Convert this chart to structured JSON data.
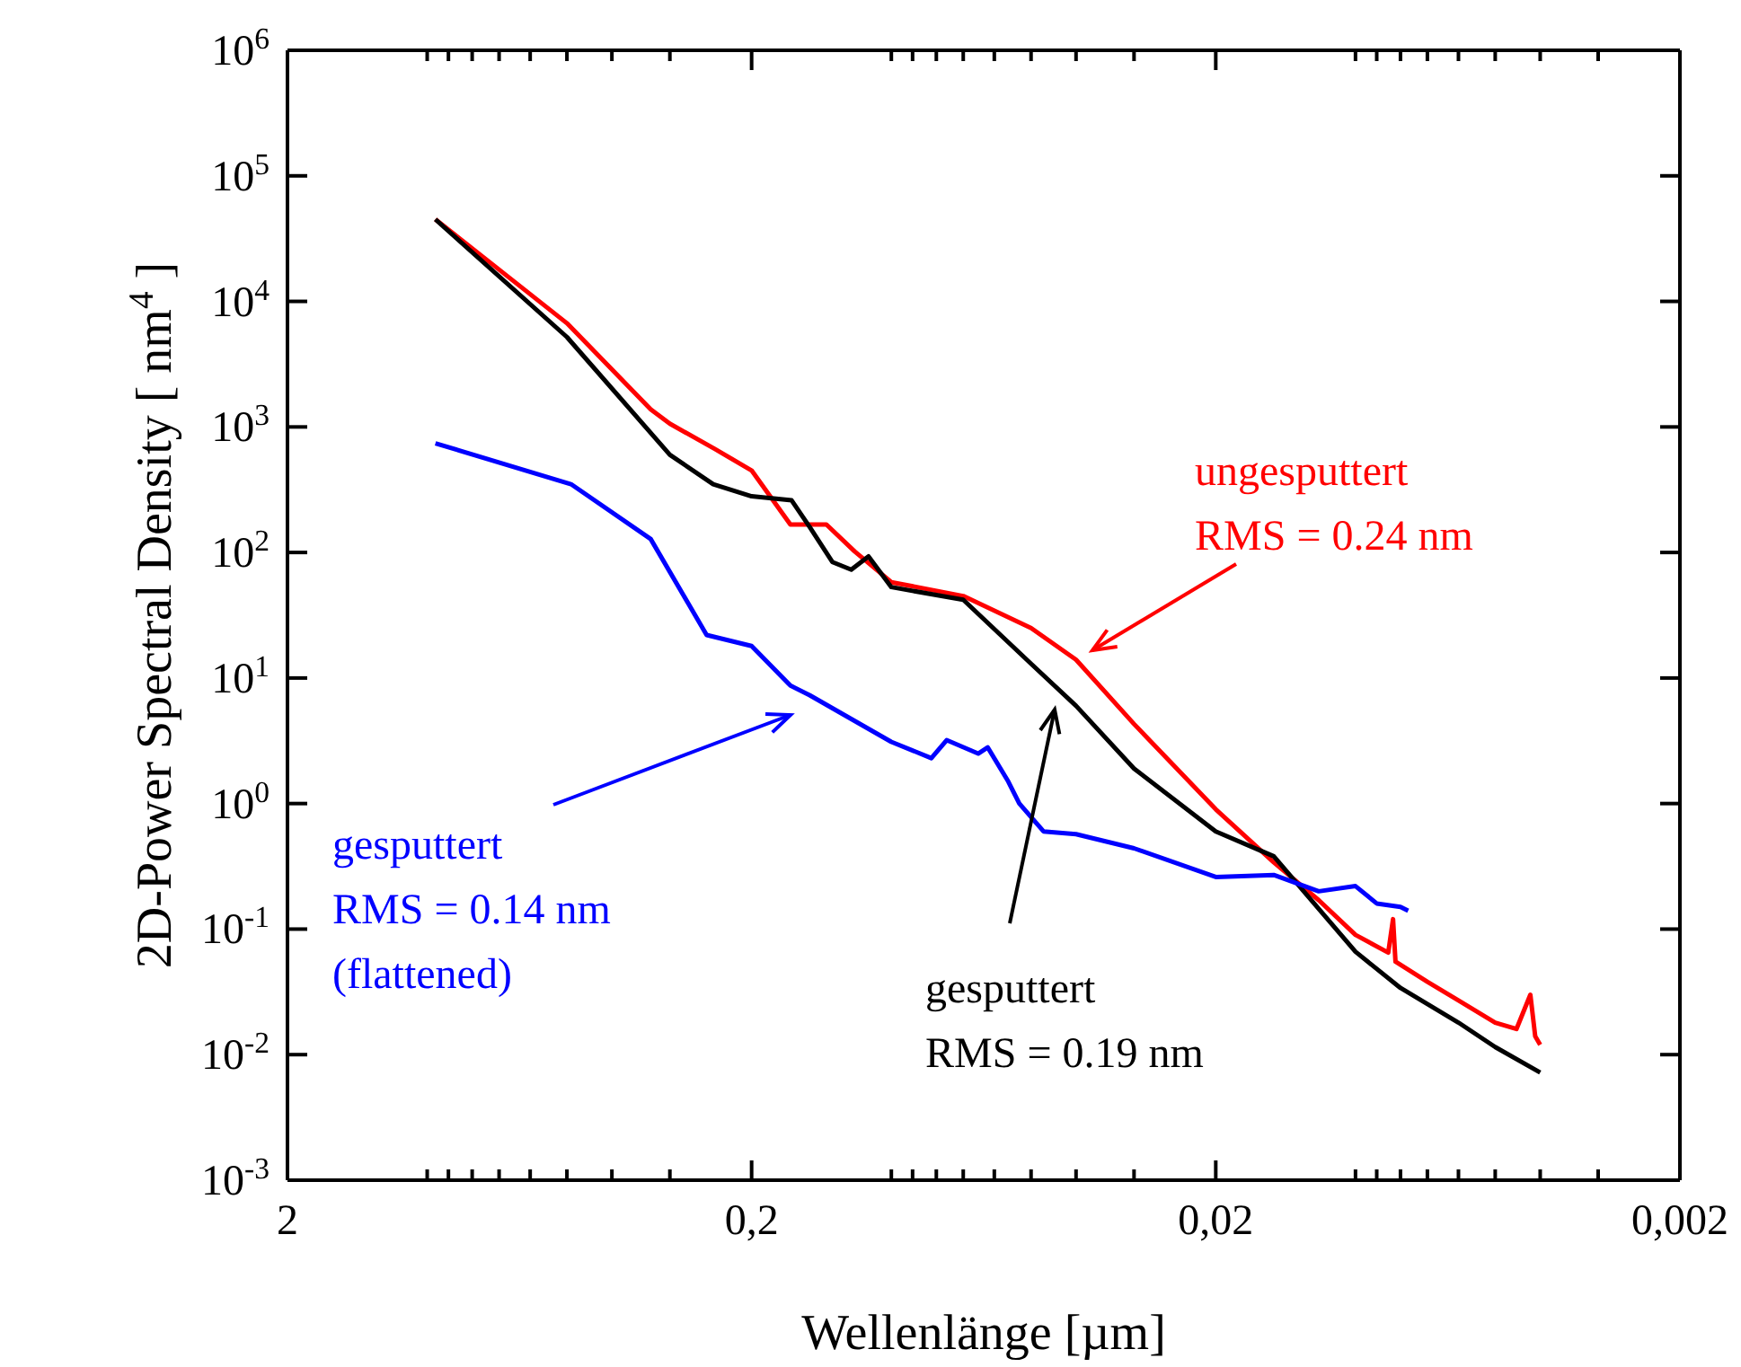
{
  "chart_data": {
    "type": "line",
    "xlabel": "Wellenlänge [µm]",
    "ylabel": "2D-Power Spectral Density [ nm$^{4}$ ]",
    "log": "xy",
    "marker": "none",
    "line_style": "solid",
    "xlim": [
      2,
      0.002
    ],
    "ylim": [
      0.001,
      1000000
    ],
    "xticks": [
      {
        "value": 2,
        "label": "2"
      },
      {
        "value": 1,
        "label": null
      },
      {
        "value": 0.9,
        "label": null
      },
      {
        "value": 0.8,
        "label": null
      },
      {
        "value": 0.7,
        "label": null
      },
      {
        "value": 0.6,
        "label": null
      },
      {
        "value": 0.5,
        "label": null
      },
      {
        "value": 0.4,
        "label": null
      },
      {
        "value": 0.3,
        "label": null
      },
      {
        "value": 0.2,
        "label": "0,2"
      },
      {
        "value": 0.1,
        "label": null
      },
      {
        "value": 0.09,
        "label": null
      },
      {
        "value": 0.08,
        "label": null
      },
      {
        "value": 0.07,
        "label": null
      },
      {
        "value": 0.06,
        "label": null
      },
      {
        "value": 0.05,
        "label": null
      },
      {
        "value": 0.04,
        "label": null
      },
      {
        "value": 0.03,
        "label": null
      },
      {
        "value": 0.02,
        "label": "0,02"
      },
      {
        "value": 0.01,
        "label": null
      },
      {
        "value": 0.009,
        "label": null
      },
      {
        "value": 0.008,
        "label": null
      },
      {
        "value": 0.007,
        "label": null
      },
      {
        "value": 0.006,
        "label": null
      },
      {
        "value": 0.005,
        "label": null
      },
      {
        "value": 0.004,
        "label": null
      },
      {
        "value": 0.003,
        "label": null
      },
      {
        "value": 0.002,
        "label": "0,002"
      }
    ],
    "yticks": [
      {
        "value": 0.001,
        "label": "10$^{-3}$"
      },
      {
        "value": 0.01,
        "label": "10$^{-2}$"
      },
      {
        "value": 0.1,
        "label": "10$^{-1}$"
      },
      {
        "value": 1,
        "label": "10$^{0}$"
      },
      {
        "value": 10,
        "label": "10$^{1}$"
      },
      {
        "value": 100,
        "label": "10$^{2}$"
      },
      {
        "value": 1000,
        "label": "10$^{3}$"
      },
      {
        "value": 10000,
        "label": "10$^{4}$"
      },
      {
        "value": 100000,
        "label": "10$^{5}$"
      },
      {
        "value": 1000000,
        "label": "10$^{6}$"
      }
    ],
    "series": [
      {
        "color": "#ff0000",
        "x": [
          0.96,
          0.5,
          0.33,
          0.3,
          0.24,
          0.2,
          0.165,
          0.138,
          0.12,
          0.1,
          0.07,
          0.05,
          0.04,
          0.03,
          0.02,
          0.015,
          0.012,
          0.01,
          0.0085,
          0.0083,
          0.0082,
          0.007,
          0.006,
          0.005,
          0.0045,
          0.0042,
          0.0041,
          0.004
        ],
        "values": [
          45000,
          6700,
          1380,
          1060,
          667,
          450,
          167,
          167,
          102,
          58,
          45,
          25,
          14,
          4.3,
          0.9,
          0.34,
          0.17,
          0.09,
          0.065,
          0.12,
          0.055,
          0.038,
          0.027,
          0.018,
          0.016,
          0.03,
          0.014,
          0.012
        ]
      },
      {
        "color": "#000000",
        "x": [
          0.96,
          0.5,
          0.3,
          0.242,
          0.2,
          0.164,
          0.15,
          0.134,
          0.122,
          0.112,
          0.1,
          0.07,
          0.05,
          0.04,
          0.03,
          0.02,
          0.015,
          0.01,
          0.008,
          0.006,
          0.005,
          0.004
        ],
        "values": [
          45000,
          5200,
          600,
          350,
          280,
          260,
          160,
          84,
          73,
          93,
          53,
          42,
          13,
          6,
          1.9,
          0.6,
          0.38,
          0.066,
          0.034,
          0.018,
          0.0115,
          0.0072
        ]
      },
      {
        "color": "#0000ff",
        "x": [
          0.96,
          0.49,
          0.33,
          0.25,
          0.2,
          0.165,
          0.15,
          0.1,
          0.082,
          0.076,
          0.065,
          0.062,
          0.056,
          0.053,
          0.047,
          0.04,
          0.03,
          0.02,
          0.015,
          0.012,
          0.01,
          0.009,
          0.008,
          0.0077
        ],
        "values": [
          740,
          350,
          128,
          22,
          18,
          8.7,
          7.3,
          3.1,
          2.3,
          3.2,
          2.5,
          2.8,
          1.5,
          1.0,
          0.6,
          0.57,
          0.44,
          0.26,
          0.27,
          0.2,
          0.22,
          0.16,
          0.15,
          0.14
        ]
      }
    ],
    "annotations": [
      "ungesputtert\nRMS = 0.24 nm",
      "gesputtert\nRMS = 0.19 nm",
      "gesputtert\nRMS = 0.14 nm\n(flattened)"
    ]
  }
}
